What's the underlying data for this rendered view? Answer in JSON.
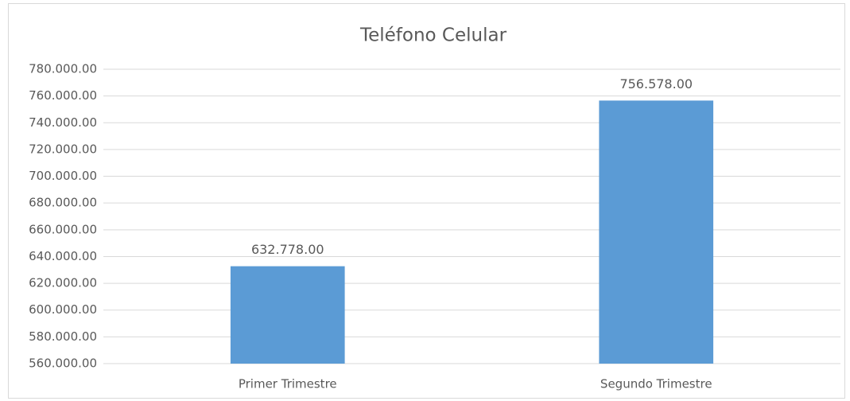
{
  "chart_data": {
    "type": "bar",
    "title": "Teléfono Celular",
    "categories": [
      "Primer Trimestre",
      "Segundo Trimestre"
    ],
    "values": [
      632778,
      756578
    ],
    "value_labels": [
      "632.778.00",
      "756.578.00"
    ],
    "color": "#5b9bd5",
    "ylim": [
      560000,
      780000
    ],
    "yticks": [
      {
        "value": 560000,
        "label": "560.000.00"
      },
      {
        "value": 580000,
        "label": "580.000.00"
      },
      {
        "value": 600000,
        "label": "600.000.00"
      },
      {
        "value": 620000,
        "label": "620.000.00"
      },
      {
        "value": 640000,
        "label": "640.000.00"
      },
      {
        "value": 660000,
        "label": "660.000.00"
      },
      {
        "value": 680000,
        "label": "680.000.00"
      },
      {
        "value": 700000,
        "label": "700.000.00"
      },
      {
        "value": 720000,
        "label": "720.000.00"
      },
      {
        "value": 740000,
        "label": "740.000.00"
      },
      {
        "value": 760000,
        "label": "760.000.00"
      },
      {
        "value": 780000,
        "label": "780.000.00"
      }
    ],
    "grid": true
  }
}
